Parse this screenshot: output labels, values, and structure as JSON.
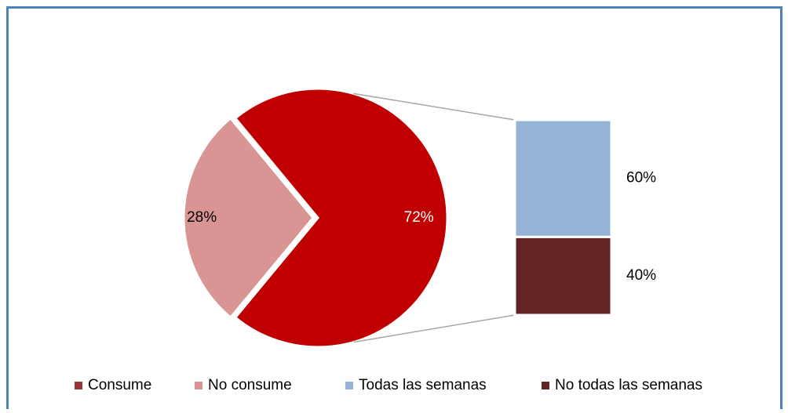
{
  "chart_data": {
    "type": "pie",
    "categories": [
      "Consume",
      "No consume"
    ],
    "values": [
      72,
      28
    ],
    "value_labels": [
      "72%",
      "28%"
    ],
    "colors": [
      "#c00000",
      "#d99594"
    ],
    "legend_colors": [
      "#953735",
      "#d99594"
    ],
    "breakout": {
      "type": "bar",
      "categories": [
        "Todas las semanas",
        "No todas las semanas"
      ],
      "values": [
        60,
        40
      ],
      "value_labels": [
        "60%",
        "40%"
      ],
      "colors": [
        "#95b3d7",
        "#632523"
      ]
    },
    "legend": "bottom"
  }
}
